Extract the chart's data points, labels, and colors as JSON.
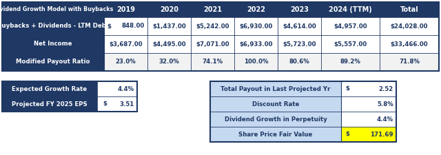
{
  "title": "Dividend Growth Model with Buybacks",
  "header_bg": "#1F3864",
  "header_text": "#FFFFFF",
  "row_label_bg": "#1F3864",
  "data_bg": "#FFFFFF",
  "data_text": "#1F3864",
  "border_color": "#1F3864",
  "columns": [
    "2019",
    "2020",
    "2021",
    "2022",
    "2023",
    "2024 (TTM)",
    "Total"
  ],
  "rows": [
    {
      "label": "Buybacks + Dividends - LTM Debt",
      "values": [
        "848.00",
        "$1,437.00",
        "$5,242.00",
        "$6,930.00",
        "$4,614.00",
        "$4,957.00",
        "$24,028.00"
      ],
      "first_dollar": true
    },
    {
      "label": "Net Income",
      "values": [
        "$3,687.00",
        "$4,495.00",
        "$7,071.00",
        "$6,933.00",
        "$5,723.00",
        "$5,557.00",
        "$33,466.00"
      ],
      "first_dollar": false
    },
    {
      "label": "Modified Payout Ratio",
      "values": [
        "23.0%",
        "32.0%",
        "74.1%",
        "100.0%",
        "80.6%",
        "89.2%",
        "71.8%"
      ],
      "first_dollar": false
    }
  ],
  "bottom_left_labels": [
    "Expected Growth Rate",
    "Projected FY 2025 EPS"
  ],
  "bottom_left_values": [
    "4.4%",
    "3.51"
  ],
  "bottom_left_dollar": [
    false,
    true
  ],
  "bottom_right_labels": [
    "Total Payout in Last Projected Yr",
    "Discount Rate",
    "Dividend Growth in Perpetuity",
    "Share Price Fair Value"
  ],
  "bottom_right_values": [
    "2.52",
    "5.8%",
    "4.4%",
    "171.69"
  ],
  "bottom_right_dollar": [
    true,
    false,
    false,
    true
  ],
  "highlight_yellow": "#FFFF00",
  "light_blue_bg": "#C5D9F1",
  "payout_row_bg": "#F2F2F2"
}
